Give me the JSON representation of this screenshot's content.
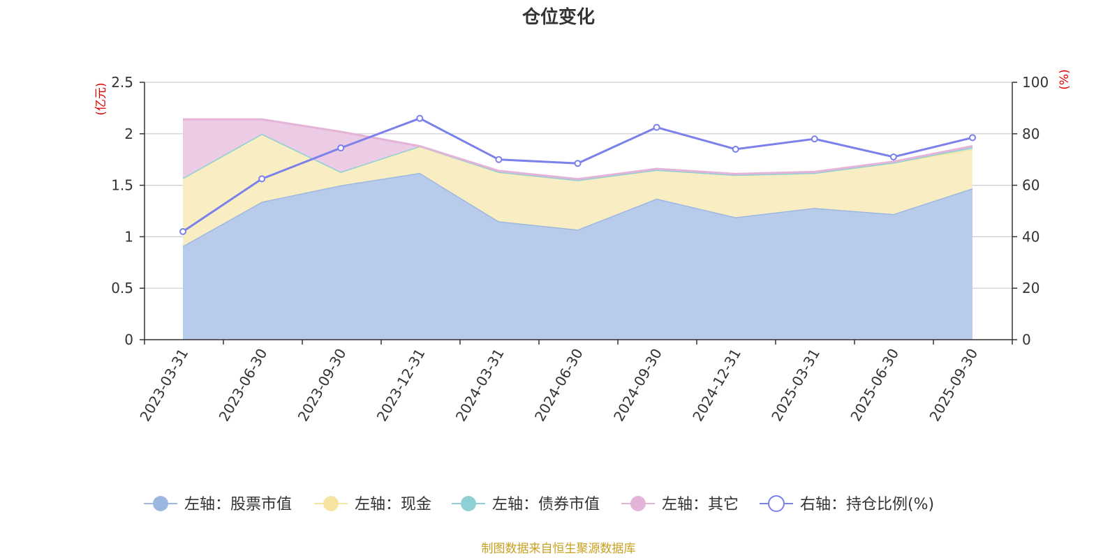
{
  "chart_data": {
    "type": "area",
    "title": "仓位变化",
    "categories": [
      "2023-03-31",
      "2023-06-30",
      "2023-09-30",
      "2023-12-31",
      "2024-03-31",
      "2024-06-30",
      "2024-09-30",
      "2024-12-31",
      "2025-03-31",
      "2025-06-30",
      "2025-09-30"
    ],
    "left_axis": {
      "unit": "(亿元)",
      "range": [
        0,
        2.5
      ],
      "ticks": [
        "0",
        "0.5",
        "1",
        "1.5",
        "2",
        "2.5"
      ]
    },
    "right_axis": {
      "unit": "(%)",
      "range": [
        0,
        100
      ],
      "ticks": [
        "0",
        "20",
        "40",
        "60",
        "80",
        "100"
      ]
    },
    "stacked": true,
    "grid": true,
    "legend_position": "bottom",
    "series": [
      {
        "name": "左轴：股票市值",
        "axis": "left",
        "type": "area",
        "color": "#9db8e0",
        "fill": "#b8cbea",
        "values": [
          0.91,
          1.34,
          1.5,
          1.62,
          1.15,
          1.07,
          1.37,
          1.19,
          1.28,
          1.22,
          1.47
        ]
      },
      {
        "name": "左轴：现金",
        "axis": "left",
        "type": "area",
        "color": "#f8e4a2",
        "fill": "#f9eec3",
        "values": [
          0.66,
          0.66,
          0.13,
          0.26,
          0.48,
          0.48,
          0.28,
          0.41,
          0.34,
          0.5,
          0.38
        ]
      },
      {
        "name": "左轴：债券市值",
        "axis": "left",
        "type": "area",
        "color": "#8ed0d4",
        "fill": "#bfe4e6",
        "values": [
          0,
          0,
          0,
          0,
          0,
          0,
          0,
          0,
          0,
          0,
          0.02
        ]
      },
      {
        "name": "左轴：其它",
        "axis": "left",
        "type": "area",
        "color": "#e4b4d8",
        "fill": "#eccbe4",
        "values": [
          0.57,
          0.14,
          0.39,
          0.0,
          0.01,
          0.01,
          0.01,
          0.01,
          0.01,
          0.01,
          0.01
        ]
      },
      {
        "name": "右轴：持仓比例(%)",
        "axis": "right",
        "type": "line",
        "color": "#7b80ea",
        "values": [
          42,
          62.5,
          74.5,
          86,
          70,
          68.5,
          82.5,
          74,
          78,
          71,
          78.5
        ]
      }
    ]
  },
  "source_note": "制图数据来自恒生聚源数据库"
}
